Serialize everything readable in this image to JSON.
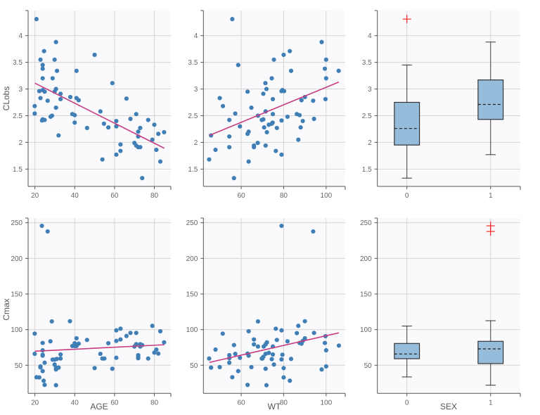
{
  "chart_data": [
    {
      "type": "scatter",
      "xlabel": "",
      "ylabel": "CLobs",
      "xlim": [
        16.6,
        88.3
      ],
      "ylim": [
        1.175,
        4.47
      ],
      "xticks": [
        20,
        40,
        60,
        80
      ],
      "yticks": [
        1.5,
        2,
        2.5,
        3,
        3.5,
        4
      ],
      "grid": true,
      "point_color": "#3f7fb5",
      "trend_color": "#c83c82",
      "trend": [
        [
          20,
          3.11
        ],
        [
          85,
          1.89
        ]
      ],
      "points": [
        [
          20.8,
          4.31
        ],
        [
          30.6,
          3.88
        ],
        [
          24.6,
          3.71
        ],
        [
          22.8,
          3.55
        ],
        [
          29.9,
          3.55
        ],
        [
          23.9,
          3.45
        ],
        [
          23.9,
          3.38
        ],
        [
          31.1,
          3.34
        ],
        [
          40.9,
          3.34
        ],
        [
          50,
          3.64
        ],
        [
          23.9,
          3.2
        ],
        [
          28.9,
          3.2
        ],
        [
          58.9,
          3.11
        ],
        [
          22.2,
          2.96
        ],
        [
          23.9,
          2.98
        ],
        [
          24.9,
          2.95
        ],
        [
          30.6,
          3.0
        ],
        [
          29.9,
          2.95
        ],
        [
          32.9,
          2.91
        ],
        [
          22.8,
          2.83
        ],
        [
          32.9,
          2.81
        ],
        [
          37.8,
          2.85
        ],
        [
          40.9,
          2.83
        ],
        [
          42,
          2.79
        ],
        [
          26.4,
          2.78
        ],
        [
          66,
          2.82
        ],
        [
          19.9,
          2.68
        ],
        [
          30.6,
          2.65
        ],
        [
          19.9,
          2.54
        ],
        [
          27.9,
          2.48
        ],
        [
          28.6,
          2.5
        ],
        [
          38.8,
          2.53
        ],
        [
          40,
          2.51
        ],
        [
          52.9,
          2.58
        ],
        [
          70.9,
          2.53
        ],
        [
          68,
          2.44
        ],
        [
          76.9,
          2.42
        ],
        [
          23.6,
          2.41
        ],
        [
          23.9,
          2.43
        ],
        [
          24.9,
          2.42
        ],
        [
          40,
          2.37
        ],
        [
          54.7,
          2.35
        ],
        [
          60.9,
          2.4
        ],
        [
          60.9,
          2.3
        ],
        [
          56.9,
          2.28
        ],
        [
          46.2,
          2.27
        ],
        [
          72.9,
          2.27
        ],
        [
          80,
          2.33
        ],
        [
          31.9,
          2.13
        ],
        [
          71.9,
          2.2
        ],
        [
          71.9,
          2.11
        ],
        [
          82,
          2.16
        ],
        [
          84.9,
          2.19
        ],
        [
          79,
          2.05
        ],
        [
          70,
          1.99
        ],
        [
          70.9,
          1.94
        ],
        [
          71.9,
          1.91
        ],
        [
          72.9,
          1.91
        ],
        [
          63,
          1.96
        ],
        [
          60.9,
          1.77
        ],
        [
          63,
          1.84
        ],
        [
          81,
          1.86
        ],
        [
          53.9,
          1.68
        ],
        [
          83,
          1.64
        ],
        [
          73.9,
          1.33
        ]
      ]
    },
    {
      "type": "scatter",
      "xlabel": "",
      "ylabel": "",
      "xlim": [
        42.2,
        109
      ],
      "ylim": [
        1.175,
        4.47
      ],
      "xticks": [
        60,
        80,
        100
      ],
      "yticks": [
        1.5,
        2,
        2.5,
        3,
        3.5,
        4
      ],
      "grid": true,
      "point_color": "#3f7fb5",
      "trend_color": "#c83c82",
      "trend": [
        [
          45,
          2.13
        ],
        [
          106,
          3.13
        ]
      ],
      "points": [
        [
          55.8,
          4.31
        ],
        [
          97.9,
          3.88
        ],
        [
          82.9,
          3.71
        ],
        [
          80,
          3.64
        ],
        [
          75.4,
          3.55
        ],
        [
          100,
          3.55
        ],
        [
          58.6,
          3.45
        ],
        [
          99.4,
          3.38
        ],
        [
          83.5,
          3.34
        ],
        [
          105.9,
          3.34
        ],
        [
          74.4,
          3.2
        ],
        [
          100,
          3.2
        ],
        [
          71.4,
          3.11
        ],
        [
          71.9,
          3.0
        ],
        [
          63,
          2.95
        ],
        [
          79,
          2.96
        ],
        [
          79.4,
          2.98
        ],
        [
          80.2,
          2.96
        ],
        [
          70.4,
          2.91
        ],
        [
          49.9,
          2.83
        ],
        [
          74.9,
          2.81
        ],
        [
          90,
          2.85
        ],
        [
          88.4,
          2.79
        ],
        [
          93.9,
          2.78
        ],
        [
          99.7,
          2.81
        ],
        [
          51.4,
          2.68
        ],
        [
          64.8,
          2.65
        ],
        [
          57.2,
          2.54
        ],
        [
          71.5,
          2.58
        ],
        [
          67.9,
          2.5
        ],
        [
          74.9,
          2.53
        ],
        [
          86.2,
          2.53
        ],
        [
          87.5,
          2.51
        ],
        [
          81.8,
          2.48
        ],
        [
          54.4,
          2.42
        ],
        [
          69.7,
          2.42
        ],
        [
          70.4,
          2.43
        ],
        [
          94.3,
          2.44
        ],
        [
          79,
          2.41
        ],
        [
          89,
          2.4
        ],
        [
          74.8,
          2.37
        ],
        [
          74.4,
          2.35
        ],
        [
          73,
          2.33
        ],
        [
          59.4,
          2.3
        ],
        [
          70.8,
          2.28
        ],
        [
          76.8,
          2.27
        ],
        [
          88,
          2.28
        ],
        [
          45.8,
          2.13
        ],
        [
          63,
          2.16
        ],
        [
          63.5,
          2.2
        ],
        [
          72.1,
          2.19
        ],
        [
          54.4,
          2.11
        ],
        [
          86.9,
          2.05
        ],
        [
          67.8,
          1.99
        ],
        [
          66,
          1.94
        ],
        [
          66,
          1.91
        ],
        [
          71.5,
          1.94
        ],
        [
          54.4,
          1.91
        ],
        [
          47.9,
          1.86
        ],
        [
          76.3,
          1.84
        ],
        [
          79,
          1.77
        ],
        [
          44.9,
          1.68
        ],
        [
          63.5,
          1.64
        ],
        [
          56.6,
          1.33
        ]
      ]
    },
    {
      "type": "box",
      "xlabel": "",
      "ylabel": "",
      "xlim": [
        -0.353,
        1.355
      ],
      "ylim": [
        1.175,
        4.47
      ],
      "categories": [
        "0",
        "1"
      ],
      "yticks": [
        1.5,
        2,
        2.5,
        3,
        3.5,
        4
      ],
      "grid": true,
      "box_color": "#8fb9d9",
      "outlier_color": "#ff0000",
      "boxes": [
        {
          "min": 1.33,
          "q1": 1.95,
          "median": 2.26,
          "q3": 2.75,
          "max": 3.45,
          "outliers": [
            4.31
          ]
        },
        {
          "min": 1.77,
          "q1": 2.43,
          "median": 2.71,
          "q3": 3.17,
          "max": 3.88,
          "outliers": []
        }
      ]
    },
    {
      "type": "scatter",
      "xlabel": "AGE",
      "ylabel": "Cmax",
      "xlim": [
        16.6,
        88.3
      ],
      "ylim": [
        10.5,
        256.6
      ],
      "xticks": [
        20,
        40,
        60,
        80
      ],
      "yticks": [
        50,
        100,
        150,
        200,
        250
      ],
      "grid": true,
      "point_color": "#3f7fb5",
      "trend_color": "#c83c82",
      "trend": [
        [
          20,
          69.7
        ],
        [
          85,
          78.8
        ]
      ],
      "points": [
        [
          23.5,
          245.7
        ],
        [
          26.4,
          237.8
        ],
        [
          28.5,
          111.5
        ],
        [
          37.6,
          111.8
        ],
        [
          19.9,
          94.4
        ],
        [
          27.8,
          83.6
        ],
        [
          23.9,
          81.3
        ],
        [
          23.9,
          71
        ],
        [
          19.9,
          66
        ],
        [
          23.9,
          64.8
        ],
        [
          23.9,
          63.5
        ],
        [
          24.9,
          53.6
        ],
        [
          22.8,
          48.4
        ],
        [
          22.8,
          47
        ],
        [
          23.9,
          41.8
        ],
        [
          20.8,
          33.2
        ],
        [
          22.2,
          32.9
        ],
        [
          24.4,
          28.3
        ],
        [
          24.9,
          22.4
        ],
        [
          30.6,
          22
        ],
        [
          28.9,
          57.9
        ],
        [
          29.9,
          57.9
        ],
        [
          31,
          58.9
        ],
        [
          32.9,
          59.5
        ],
        [
          32.9,
          65.1
        ],
        [
          29.9,
          51
        ],
        [
          30.6,
          46.7
        ],
        [
          31.9,
          46.7
        ],
        [
          30.6,
          44.1
        ],
        [
          38.8,
          77
        ],
        [
          40,
          80.9
        ],
        [
          40,
          77
        ],
        [
          40.9,
          77
        ],
        [
          40.9,
          87.8
        ],
        [
          42,
          80.3
        ],
        [
          46.2,
          85.5
        ],
        [
          50,
          46
        ],
        [
          52.9,
          66
        ],
        [
          53.9,
          59.5
        ],
        [
          54.9,
          59.5
        ],
        [
          56.9,
          80.9
        ],
        [
          58.9,
          45.1
        ],
        [
          60.9,
          99
        ],
        [
          60.9,
          84.2
        ],
        [
          60.9,
          60.5
        ],
        [
          63,
          101.3
        ],
        [
          63,
          86.2
        ],
        [
          66,
          91.1
        ],
        [
          68,
          95.4
        ],
        [
          70.9,
          95.4
        ],
        [
          70,
          76.3
        ],
        [
          70.9,
          79.6
        ],
        [
          71.9,
          64.1
        ],
        [
          71.9,
          61.8
        ],
        [
          71.9,
          59.9
        ],
        [
          72.9,
          76.3
        ],
        [
          72.9,
          79.6
        ],
        [
          73.9,
          78.3
        ],
        [
          76.9,
          59.5
        ],
        [
          79,
          105.3
        ],
        [
          80,
          67.8
        ],
        [
          81,
          72
        ],
        [
          82,
          66.4
        ],
        [
          83,
          97.7
        ],
        [
          84.9,
          82.2
        ]
      ]
    },
    {
      "type": "scatter",
      "xlabel": "WT",
      "ylabel": "",
      "xlim": [
        42.2,
        109
      ],
      "ylim": [
        10.5,
        256.6
      ],
      "xticks": [
        60,
        80,
        100
      ],
      "yticks": [
        50,
        100,
        150,
        200,
        250
      ],
      "grid": true,
      "point_color": "#3f7fb5",
      "trend_color": "#c83c82",
      "trend": [
        [
          45,
          54
        ],
        [
          106,
          95.5
        ]
      ],
      "points": [
        [
          79,
          245.7
        ],
        [
          93.9,
          237.8
        ],
        [
          67.9,
          111.5
        ],
        [
          90,
          111.8
        ],
        [
          51.3,
          94.4
        ],
        [
          63.5,
          97.7
        ],
        [
          76.3,
          101.3
        ],
        [
          79,
          99
        ],
        [
          86.9,
          105.3
        ],
        [
          86.2,
          95.1
        ],
        [
          94.3,
          95.4
        ],
        [
          66,
          86.2
        ],
        [
          76.8,
          85.5
        ],
        [
          90,
          87.8
        ],
        [
          81.8,
          83.6
        ],
        [
          99.7,
          90.8
        ],
        [
          47.9,
          72
        ],
        [
          56.6,
          78.3
        ],
        [
          66,
          79.3
        ],
        [
          67.9,
          76.3
        ],
        [
          71.5,
          79.3
        ],
        [
          72.1,
          82.2
        ],
        [
          74.9,
          76.3
        ],
        [
          70.6,
          76.3
        ],
        [
          87.5,
          81.3
        ],
        [
          88.4,
          80.3
        ],
        [
          89,
          84.2
        ],
        [
          99.4,
          81.3
        ],
        [
          100,
          71
        ],
        [
          106,
          77.6
        ],
        [
          44.9,
          59.5
        ],
        [
          54.4,
          64.1
        ],
        [
          54.4,
          59.9
        ],
        [
          57.2,
          66
        ],
        [
          59.4,
          60.5
        ],
        [
          63,
          66.4
        ],
        [
          63.5,
          63.5
        ],
        [
          71.5,
          66
        ],
        [
          73,
          67.4
        ],
        [
          74.9,
          65.1
        ],
        [
          69.7,
          59.5
        ],
        [
          70.4,
          61.8
        ],
        [
          70,
          59.5
        ],
        [
          74.4,
          58.6
        ],
        [
          79,
          58.2
        ],
        [
          79.4,
          64.8
        ],
        [
          83.5,
          58.9
        ],
        [
          54.4,
          53.6
        ],
        [
          75.4,
          51
        ],
        [
          100,
          48.4
        ],
        [
          45.8,
          46.7
        ],
        [
          49.9,
          47.4
        ],
        [
          64.8,
          47.4
        ],
        [
          80,
          46
        ],
        [
          71.5,
          45.1
        ],
        [
          97.9,
          44.1
        ],
        [
          58.6,
          41.8
        ],
        [
          55.8,
          33.2
        ],
        [
          80,
          32.9
        ],
        [
          82.9,
          28.3
        ],
        [
          63,
          22.4
        ],
        [
          71.9,
          22
        ]
      ]
    },
    {
      "type": "box",
      "xlabel": "SEX",
      "ylabel": "",
      "xlim": [
        -0.353,
        1.355
      ],
      "ylim": [
        10.5,
        256.6
      ],
      "categories": [
        "0",
        "1"
      ],
      "yticks": [
        50,
        100,
        150,
        200,
        250
      ],
      "grid": true,
      "box_color": "#8fb9d9",
      "outlier_color": "#ff0000",
      "boxes": [
        {
          "min": 33.6,
          "q1": 59.2,
          "median": 65.8,
          "q3": 80.6,
          "max": 105,
          "outliers": []
        },
        {
          "min": 22,
          "q1": 52.3,
          "median": 73,
          "q3": 83.6,
          "max": 112.5,
          "outliers": [
            245.7,
            237.8
          ]
        }
      ]
    }
  ]
}
